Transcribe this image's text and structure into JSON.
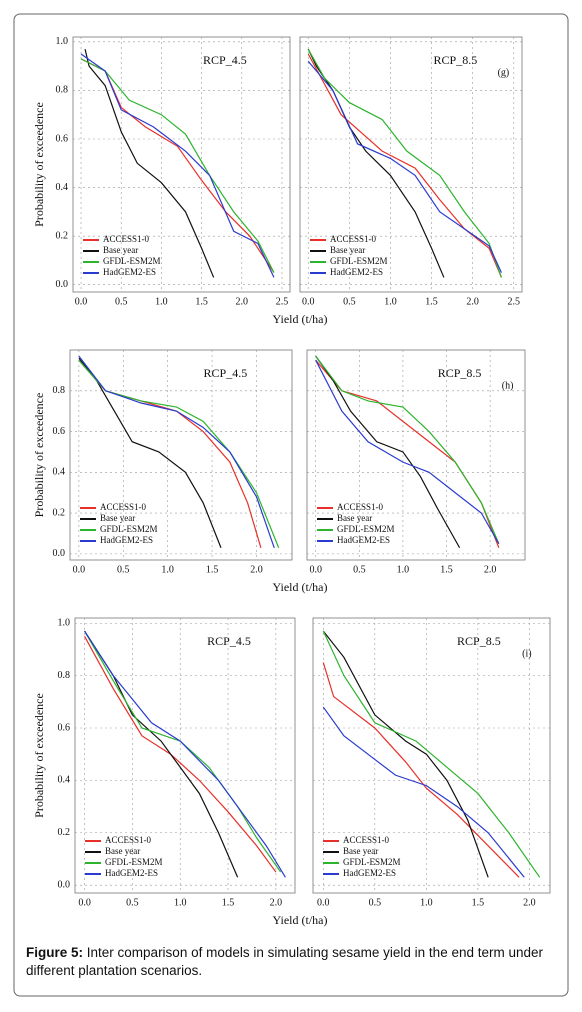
{
  "chart_data": [
    {
      "type": "line",
      "title": "RCP_4.5",
      "y_label": "Probability of exceedence",
      "x_label": "Yield (t/ha)",
      "xlim": [
        -0.1,
        2.6
      ],
      "ylim": [
        -0.03,
        1.02
      ],
      "xticks": [
        {
          "value": 0,
          "label": "0.0"
        },
        0.5,
        {
          "value": 1,
          "label": "1.0"
        },
        1.5,
        {
          "value": 2,
          "label": "2.0"
        },
        2.5
      ],
      "yticks": [
        {
          "value": 0,
          "label": "0.0"
        },
        0.2,
        0.4,
        0.6,
        0.8,
        {
          "value": 1,
          "label": "1.0"
        }
      ],
      "ytick_labels": true,
      "grid": true,
      "legend": "lower left",
      "series": [
        {
          "name": "ACCESS1-0",
          "color": "#e8302a",
          "x": [
            0.0,
            0.3,
            0.5,
            0.8,
            1.2,
            1.5,
            1.8,
            2.1,
            2.4
          ],
          "values": [
            0.93,
            0.88,
            0.73,
            0.65,
            0.57,
            0.43,
            0.3,
            0.2,
            0.05
          ]
        },
        {
          "name": "Base year",
          "color": "#111111",
          "x": [
            0.05,
            0.1,
            0.3,
            0.5,
            0.7,
            1.0,
            1.3,
            1.5,
            1.65
          ],
          "values": [
            0.97,
            0.9,
            0.82,
            0.63,
            0.5,
            0.42,
            0.3,
            0.15,
            0.03
          ]
        },
        {
          "name": "GFDL-ESM2M",
          "color": "#2db42d",
          "x": [
            0.0,
            0.3,
            0.6,
            1.0,
            1.3,
            1.6,
            1.9,
            2.2,
            2.4
          ],
          "values": [
            0.93,
            0.88,
            0.76,
            0.7,
            0.62,
            0.45,
            0.3,
            0.18,
            0.05
          ]
        },
        {
          "name": "HadGEM2-ES",
          "color": "#2a3bd0",
          "x": [
            0.0,
            0.3,
            0.5,
            0.9,
            1.3,
            1.6,
            1.9,
            2.2,
            2.4
          ],
          "values": [
            0.95,
            0.88,
            0.72,
            0.65,
            0.55,
            0.45,
            0.22,
            0.17,
            0.03
          ]
        }
      ]
    },
    {
      "type": "line",
      "title": "RCP_8.5",
      "annotation": "(g)",
      "xlim": [
        -0.1,
        2.6
      ],
      "ylim": [
        -0.03,
        1.02
      ],
      "xticks": [
        {
          "value": 0,
          "label": "0.0"
        },
        0.5,
        {
          "value": 1,
          "label": "1.0"
        },
        1.5,
        {
          "value": 2,
          "label": "2.0"
        },
        2.5
      ],
      "yticks": [
        0,
        0.2,
        0.4,
        0.6,
        0.8,
        1
      ],
      "ytick_labels": false,
      "grid": true,
      "legend": "lower left",
      "series": [
        {
          "name": "ACCESS1-0",
          "color": "#e8302a",
          "x": [
            0.0,
            0.4,
            0.9,
            1.3,
            1.6,
            1.9,
            2.2,
            2.35
          ],
          "values": [
            0.95,
            0.7,
            0.55,
            0.48,
            0.35,
            0.23,
            0.15,
            0.03
          ]
        },
        {
          "name": "Base year",
          "color": "#111111",
          "x": [
            0.0,
            0.1,
            0.3,
            0.5,
            0.7,
            1.0,
            1.3,
            1.5,
            1.65
          ],
          "values": [
            0.97,
            0.9,
            0.8,
            0.65,
            0.55,
            0.45,
            0.3,
            0.15,
            0.03
          ]
        },
        {
          "name": "GFDL-ESM2M",
          "color": "#2db42d",
          "x": [
            0.0,
            0.2,
            0.5,
            0.9,
            1.2,
            1.6,
            1.9,
            2.2,
            2.35
          ],
          "values": [
            0.97,
            0.85,
            0.75,
            0.68,
            0.55,
            0.45,
            0.3,
            0.17,
            0.03
          ]
        },
        {
          "name": "HadGEM2-ES",
          "color": "#2a3bd0",
          "x": [
            0.0,
            0.3,
            0.6,
            1.0,
            1.3,
            1.6,
            1.9,
            2.2,
            2.35
          ],
          "values": [
            0.92,
            0.8,
            0.58,
            0.52,
            0.45,
            0.3,
            0.23,
            0.16,
            0.05
          ]
        }
      ]
    },
    {
      "type": "line",
      "title": "RCP_4.5",
      "y_label": "Probability of exceedence",
      "x_label": "Yield (t/ha)",
      "xlim": [
        -0.1,
        2.4
      ],
      "ylim": [
        -0.03,
        1.0
      ],
      "xticks": [
        {
          "value": 0,
          "label": "0.0"
        },
        0.5,
        {
          "value": 1,
          "label": "1.0"
        },
        1.5,
        {
          "value": 2,
          "label": "2.0"
        }
      ],
      "yticks": [
        {
          "value": 0,
          "label": "0.0"
        },
        0.2,
        0.4,
        0.6,
        0.8
      ],
      "ytick_labels": true,
      "grid": true,
      "legend": "lower left",
      "series": [
        {
          "name": "ACCESS1-0",
          "color": "#e8302a",
          "x": [
            0.0,
            0.3,
            0.7,
            1.1,
            1.4,
            1.7,
            1.9,
            2.05
          ],
          "values": [
            0.95,
            0.8,
            0.75,
            0.7,
            0.6,
            0.45,
            0.25,
            0.03
          ]
        },
        {
          "name": "Base year",
          "color": "#111111",
          "x": [
            0.0,
            0.2,
            0.4,
            0.6,
            0.9,
            1.2,
            1.4,
            1.6
          ],
          "values": [
            0.96,
            0.85,
            0.7,
            0.55,
            0.5,
            0.4,
            0.25,
            0.03
          ]
        },
        {
          "name": "GFDL-ESM2M",
          "color": "#2db42d",
          "x": [
            0.0,
            0.3,
            0.7,
            1.1,
            1.4,
            1.7,
            2.0,
            2.25
          ],
          "values": [
            0.95,
            0.8,
            0.75,
            0.72,
            0.65,
            0.5,
            0.3,
            0.03
          ]
        },
        {
          "name": "HadGEM2-ES",
          "color": "#2a3bd0",
          "x": [
            0.0,
            0.3,
            0.7,
            1.1,
            1.4,
            1.7,
            2.0,
            2.2
          ],
          "values": [
            0.97,
            0.8,
            0.74,
            0.7,
            0.62,
            0.5,
            0.28,
            0.03
          ]
        }
      ]
    },
    {
      "type": "line",
      "title": "RCP_8.5",
      "annotation": "(h)",
      "xlim": [
        -0.1,
        2.4
      ],
      "ylim": [
        -0.03,
        1.0
      ],
      "xticks": [
        {
          "value": 0,
          "label": "0.0"
        },
        0.5,
        {
          "value": 1,
          "label": "1.0"
        },
        1.5,
        {
          "value": 2,
          "label": "2.0"
        }
      ],
      "yticks": [
        0,
        0.2,
        0.4,
        0.6,
        0.8
      ],
      "ytick_labels": false,
      "grid": true,
      "legend": "lower left",
      "series": [
        {
          "name": "ACCESS1-0",
          "color": "#e8302a",
          "x": [
            0.0,
            0.3,
            0.7,
            1.0,
            1.3,
            1.6,
            1.9,
            2.1
          ],
          "values": [
            0.95,
            0.8,
            0.75,
            0.65,
            0.55,
            0.45,
            0.25,
            0.03
          ]
        },
        {
          "name": "Base year",
          "color": "#111111",
          "x": [
            0.0,
            0.2,
            0.4,
            0.7,
            1.0,
            1.2,
            1.4,
            1.65
          ],
          "values": [
            0.97,
            0.85,
            0.7,
            0.55,
            0.5,
            0.38,
            0.22,
            0.03
          ]
        },
        {
          "name": "GFDL-ESM2M",
          "color": "#2db42d",
          "x": [
            0.0,
            0.3,
            0.6,
            1.0,
            1.3,
            1.6,
            1.9,
            2.1
          ],
          "values": [
            0.97,
            0.8,
            0.75,
            0.72,
            0.6,
            0.45,
            0.25,
            0.05
          ]
        },
        {
          "name": "HadGEM2-ES",
          "color": "#2a3bd0",
          "x": [
            0.0,
            0.3,
            0.6,
            1.0,
            1.3,
            1.6,
            1.9,
            2.1
          ],
          "values": [
            0.95,
            0.7,
            0.55,
            0.45,
            0.4,
            0.3,
            0.2,
            0.05
          ]
        }
      ]
    },
    {
      "type": "line",
      "title": "RCP_4.5",
      "y_label": "Probability of exceedence",
      "x_label": "Yield (t/ha)",
      "xlim": [
        -0.1,
        2.2
      ],
      "ylim": [
        -0.03,
        1.02
      ],
      "xticks": [
        {
          "value": 0,
          "label": "0.0"
        },
        0.5,
        {
          "value": 1,
          "label": "1.0"
        },
        1.5,
        {
          "value": 2,
          "label": "2.0"
        }
      ],
      "yticks": [
        {
          "value": 0,
          "label": "0.0"
        },
        0.2,
        0.4,
        0.6,
        0.8,
        {
          "value": 1,
          "label": "1.0"
        }
      ],
      "ytick_labels": true,
      "grid": true,
      "legend": "lower left",
      "series": [
        {
          "name": "ACCESS1-0",
          "color": "#e8302a",
          "x": [
            0.0,
            0.3,
            0.6,
            0.9,
            1.2,
            1.5,
            1.8,
            2.0
          ],
          "values": [
            0.95,
            0.75,
            0.57,
            0.5,
            0.4,
            0.28,
            0.15,
            0.05
          ]
        },
        {
          "name": "Base year",
          "color": "#111111",
          "x": [
            0.0,
            0.3,
            0.5,
            0.8,
            1.0,
            1.2,
            1.4,
            1.6
          ],
          "values": [
            0.97,
            0.8,
            0.65,
            0.55,
            0.45,
            0.35,
            0.2,
            0.03
          ]
        },
        {
          "name": "GFDL-ESM2M",
          "color": "#2db42d",
          "x": [
            0.0,
            0.3,
            0.6,
            1.0,
            1.3,
            1.6,
            1.8,
            2.05
          ],
          "values": [
            0.97,
            0.78,
            0.6,
            0.55,
            0.45,
            0.3,
            0.18,
            0.05
          ]
        },
        {
          "name": "HadGEM2-ES",
          "color": "#2a3bd0",
          "x": [
            0.0,
            0.3,
            0.7,
            1.0,
            1.4,
            1.6,
            1.9,
            2.1
          ],
          "values": [
            0.97,
            0.8,
            0.62,
            0.55,
            0.4,
            0.3,
            0.15,
            0.03
          ]
        }
      ]
    },
    {
      "type": "line",
      "title": "RCP_8.5",
      "annotation": "(i)",
      "xlim": [
        -0.1,
        2.2
      ],
      "ylim": [
        -0.03,
        1.02
      ],
      "xticks": [
        {
          "value": 0,
          "label": "0.0"
        },
        0.5,
        {
          "value": 1,
          "label": "1.0"
        },
        1.5,
        {
          "value": 2,
          "label": "2.0"
        }
      ],
      "yticks": [
        0,
        0.2,
        0.4,
        0.6,
        0.8,
        1
      ],
      "ytick_labels": false,
      "grid": true,
      "legend": "lower left",
      "series": [
        {
          "name": "ACCESS1-0",
          "color": "#e8302a",
          "x": [
            0.0,
            0.1,
            0.5,
            0.8,
            1.0,
            1.3,
            1.6,
            1.9
          ],
          "values": [
            0.85,
            0.72,
            0.6,
            0.47,
            0.37,
            0.27,
            0.15,
            0.03
          ]
        },
        {
          "name": "Base year",
          "color": "#111111",
          "x": [
            0.0,
            0.2,
            0.5,
            0.8,
            1.0,
            1.2,
            1.4,
            1.6
          ],
          "values": [
            0.97,
            0.87,
            0.65,
            0.55,
            0.5,
            0.4,
            0.25,
            0.03
          ]
        },
        {
          "name": "GFDL-ESM2M",
          "color": "#2db42d",
          "x": [
            0.0,
            0.2,
            0.5,
            0.9,
            1.2,
            1.5,
            1.8,
            2.1
          ],
          "values": [
            0.97,
            0.8,
            0.62,
            0.55,
            0.45,
            0.35,
            0.2,
            0.03
          ]
        },
        {
          "name": "HadGEM2-ES",
          "color": "#2a3bd0",
          "x": [
            0.0,
            0.2,
            0.5,
            0.7,
            1.0,
            1.3,
            1.6,
            1.95
          ],
          "values": [
            0.68,
            0.57,
            0.48,
            0.42,
            0.38,
            0.3,
            0.2,
            0.03
          ]
        }
      ]
    }
  ],
  "caption": {
    "label": "Figure 5:",
    "text": "Inter comparison of models in simulating sesame yield in the end term under different plantation scenarios."
  }
}
